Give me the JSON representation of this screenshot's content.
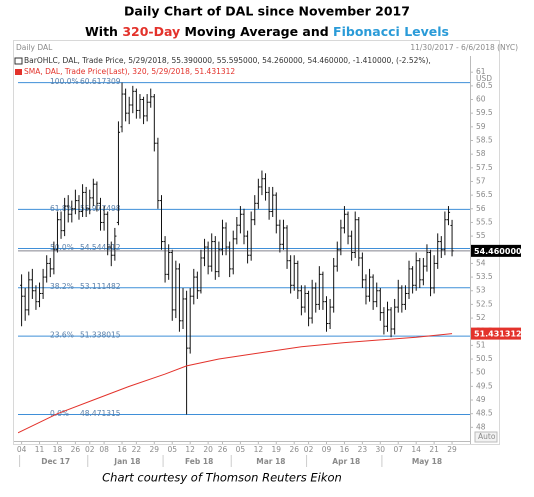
{
  "chart_data": {
    "type": "ohlc",
    "title": "Daily Chart of DAL since November 2017",
    "subtitle_parts": [
      {
        "text": "With "
      },
      {
        "text": "320-Day",
        "color": "#e3322b"
      },
      {
        "text": " Moving Average and "
      },
      {
        "text": "Fibonacci Levels",
        "color": "#2a9bd8"
      }
    ],
    "header_left": "Daily DAL",
    "header_right": "11/30/2017 - 6/6/2018 (NYC)",
    "legend": [
      "BarOHLC, DAL, Trade Price, 5/29/2018, 55.390000, 55.595000, 54.260000, 54.460000, -1.410000, (-2.52%),",
      "SMA, DAL, Trade Price(Last), 320, 5/29/2018, 51.431312"
    ],
    "color": "#111111",
    "x": [
      0,
      1,
      2,
      3,
      4,
      5,
      6,
      7,
      8,
      9,
      10,
      11,
      12,
      13,
      14,
      15,
      16,
      17,
      18,
      19,
      20,
      21,
      22,
      23,
      24,
      25,
      26,
      27,
      28,
      29,
      30,
      31,
      32,
      33,
      34,
      35,
      36,
      37,
      38,
      39,
      40,
      41,
      42,
      43,
      44,
      45,
      46,
      47,
      48,
      49,
      50,
      51,
      52,
      53,
      54,
      55,
      56,
      57,
      58,
      59,
      60,
      61,
      62,
      63,
      64,
      65,
      66,
      67,
      68,
      69,
      70,
      71,
      72,
      73,
      74,
      75,
      76,
      77,
      78,
      79,
      80,
      81,
      82,
      83,
      84,
      85,
      86,
      87,
      88,
      89,
      90,
      91,
      92,
      93,
      94,
      95,
      96,
      97,
      98,
      99,
      100,
      101,
      102,
      103,
      104,
      105,
      106,
      107,
      108,
      109,
      110,
      111,
      112,
      113,
      114,
      115,
      116,
      117,
      118,
      119,
      120
    ],
    "ohlc": [
      [
        53.2,
        53.6,
        51.7,
        52.8
      ],
      [
        52.8,
        53.1,
        51.9,
        52.3
      ],
      [
        52.3,
        53.7,
        52.1,
        53.4
      ],
      [
        53.4,
        53.8,
        52.7,
        53.0
      ],
      [
        53.0,
        53.2,
        52.3,
        52.6
      ],
      [
        52.6,
        53.3,
        52.4,
        52.9
      ],
      [
        52.9,
        53.8,
        52.7,
        53.5
      ],
      [
        53.5,
        54.3,
        53.3,
        54.0
      ],
      [
        54.0,
        54.2,
        53.5,
        53.8
      ],
      [
        53.8,
        54.8,
        53.6,
        54.5
      ],
      [
        54.5,
        55.9,
        54.4,
        55.6
      ],
      [
        55.6,
        55.9,
        54.9,
        55.2
      ],
      [
        55.2,
        56.4,
        55.0,
        56.1
      ],
      [
        56.1,
        56.5,
        55.5,
        55.8
      ],
      [
        55.8,
        56.3,
        55.5,
        56.0
      ],
      [
        56.0,
        56.7,
        55.8,
        56.3
      ],
      [
        56.3,
        56.5,
        55.6,
        55.9
      ],
      [
        55.9,
        56.9,
        55.7,
        56.6
      ],
      [
        56.6,
        56.8,
        55.7,
        56.0
      ],
      [
        56.0,
        56.7,
        55.8,
        56.4
      ],
      [
        56.4,
        57.1,
        56.1,
        56.9
      ],
      [
        56.9,
        57.0,
        55.9,
        56.2
      ],
      [
        56.2,
        56.4,
        55.2,
        55.5
      ],
      [
        55.5,
        56.1,
        55.2,
        55.8
      ],
      [
        55.8,
        55.9,
        54.3,
        54.6
      ],
      [
        54.6,
        54.8,
        53.9,
        54.3
      ],
      [
        54.3,
        55.3,
        54.1,
        55.0
      ],
      [
        55.5,
        59.2,
        55.4,
        58.8
      ],
      [
        59.0,
        60.62,
        58.8,
        60.2
      ],
      [
        60.2,
        60.4,
        59.2,
        59.5
      ],
      [
        59.5,
        60.1,
        59.1,
        59.8
      ],
      [
        59.8,
        60.5,
        59.5,
        60.3
      ],
      [
        60.3,
        60.4,
        59.3,
        59.6
      ],
      [
        59.6,
        60.2,
        59.3,
        60.0
      ],
      [
        60.0,
        60.1,
        59.1,
        59.4
      ],
      [
        59.4,
        60.2,
        59.2,
        59.9
      ],
      [
        59.9,
        60.4,
        59.7,
        60.1
      ],
      [
        60.1,
        60.2,
        58.1,
        58.4
      ],
      [
        58.4,
        58.6,
        56.0,
        56.3
      ],
      [
        56.3,
        56.5,
        54.5,
        54.8
      ],
      [
        54.8,
        55.0,
        53.3,
        53.6
      ],
      [
        53.6,
        54.7,
        53.4,
        54.4
      ],
      [
        54.4,
        54.5,
        51.9,
        52.3
      ],
      [
        52.3,
        54.1,
        52.0,
        53.8
      ],
      [
        53.8,
        54.0,
        51.5,
        51.9
      ],
      [
        51.9,
        53.1,
        51.6,
        52.7
      ],
      [
        52.7,
        53.0,
        48.47,
        50.9
      ],
      [
        50.9,
        53.1,
        50.7,
        52.8
      ],
      [
        52.8,
        53.8,
        52.5,
        53.5
      ],
      [
        53.5,
        53.7,
        52.7,
        53.0
      ],
      [
        53.0,
        54.5,
        52.9,
        54.2
      ],
      [
        54.2,
        54.9,
        53.9,
        54.6
      ],
      [
        54.6,
        54.8,
        53.6,
        53.9
      ],
      [
        53.9,
        55.1,
        53.7,
        54.8
      ],
      [
        54.8,
        55.0,
        53.4,
        53.7
      ],
      [
        53.7,
        54.8,
        53.5,
        54.5
      ],
      [
        54.5,
        55.6,
        54.3,
        55.3
      ],
      [
        55.3,
        55.5,
        54.3,
        54.6
      ],
      [
        54.6,
        54.8,
        53.5,
        53.8
      ],
      [
        53.8,
        55.2,
        53.6,
        54.9
      ],
      [
        54.9,
        55.7,
        54.7,
        55.4
      ],
      [
        55.4,
        56.1,
        55.1,
        55.8
      ],
      [
        55.8,
        56.0,
        54.7,
        55.0
      ],
      [
        55.0,
        55.2,
        54.0,
        54.3
      ],
      [
        54.3,
        55.9,
        54.1,
        55.6
      ],
      [
        55.6,
        56.5,
        55.4,
        56.2
      ],
      [
        56.2,
        57.1,
        56.0,
        56.8
      ],
      [
        56.8,
        57.4,
        56.5,
        57.1
      ],
      [
        57.1,
        57.3,
        56.3,
        56.6
      ],
      [
        56.6,
        56.8,
        55.6,
        55.9
      ],
      [
        55.9,
        56.8,
        55.7,
        56.5
      ],
      [
        56.5,
        56.6,
        55.1,
        55.4
      ],
      [
        55.4,
        55.6,
        54.4,
        54.7
      ],
      [
        54.7,
        55.6,
        54.5,
        55.3
      ],
      [
        55.3,
        55.4,
        53.8,
        54.1
      ],
      [
        54.1,
        54.3,
        52.9,
        53.2
      ],
      [
        53.2,
        54.3,
        53.0,
        54.0
      ],
      [
        54.0,
        54.1,
        52.7,
        53.0
      ],
      [
        53.0,
        53.2,
        52.1,
        52.4
      ],
      [
        52.4,
        53.2,
        52.2,
        52.9
      ],
      [
        52.9,
        53.0,
        51.7,
        52.0
      ],
      [
        52.0,
        53.4,
        51.8,
        53.1
      ],
      [
        53.1,
        53.3,
        52.2,
        52.5
      ],
      [
        52.5,
        53.9,
        52.3,
        53.6
      ],
      [
        53.6,
        53.7,
        52.3,
        52.6
      ],
      [
        52.6,
        52.8,
        51.5,
        51.8
      ],
      [
        51.8,
        52.7,
        51.6,
        52.4
      ],
      [
        52.4,
        54.2,
        52.2,
        53.9
      ],
      [
        53.9,
        54.8,
        53.7,
        54.5
      ],
      [
        54.5,
        55.6,
        54.3,
        55.3
      ],
      [
        55.3,
        56.1,
        55.1,
        55.8
      ],
      [
        55.8,
        55.9,
        54.7,
        55.0
      ],
      [
        55.0,
        55.2,
        54.1,
        54.4
      ],
      [
        54.4,
        55.9,
        54.2,
        55.6
      ],
      [
        55.6,
        55.7,
        53.9,
        54.2
      ],
      [
        54.2,
        54.4,
        53.1,
        53.4
      ],
      [
        53.4,
        53.6,
        52.5,
        52.8
      ],
      [
        52.8,
        53.8,
        52.6,
        53.5
      ],
      [
        53.5,
        53.6,
        52.3,
        52.6
      ],
      [
        52.6,
        53.3,
        52.4,
        53.0
      ],
      [
        53.0,
        53.1,
        51.9,
        52.2
      ],
      [
        52.2,
        52.4,
        51.4,
        51.7
      ],
      [
        51.7,
        52.6,
        51.5,
        52.3
      ],
      [
        52.3,
        52.4,
        51.3,
        51.6
      ],
      [
        51.6,
        52.7,
        51.4,
        52.4
      ],
      [
        52.4,
        53.4,
        52.2,
        53.1
      ],
      [
        53.1,
        53.2,
        52.2,
        52.5
      ],
      [
        52.5,
        53.2,
        52.3,
        52.9
      ],
      [
        52.9,
        54.1,
        52.7,
        53.8
      ],
      [
        53.8,
        53.9,
        52.9,
        53.2
      ],
      [
        53.2,
        54.4,
        53.0,
        54.1
      ],
      [
        54.1,
        54.2,
        53.1,
        53.4
      ],
      [
        53.4,
        54.2,
        53.2,
        53.9
      ],
      [
        53.9,
        54.7,
        53.7,
        54.4
      ],
      [
        54.4,
        54.5,
        52.8,
        53.1
      ],
      [
        53.1,
        54.3,
        52.9,
        54.0
      ],
      [
        54.0,
        55.1,
        53.8,
        54.8
      ],
      [
        54.8,
        55.0,
        54.2,
        54.5
      ],
      [
        54.5,
        55.9,
        54.3,
        55.6
      ],
      [
        55.6,
        56.1,
        55.4,
        55.87
      ],
      [
        55.39,
        55.595,
        54.26,
        54.46
      ]
    ],
    "sma": {
      "color": "#e3322b",
      "x": [
        -1,
        10,
        20,
        30,
        40,
        46,
        55,
        65,
        78,
        90,
        100,
        110,
        120
      ],
      "values": [
        47.8,
        48.5,
        49.0,
        49.5,
        49.95,
        50.25,
        50.5,
        50.7,
        50.95,
        51.1,
        51.2,
        51.3,
        51.431312
      ]
    },
    "fib_color": "#3f8fd8",
    "fib_levels": [
      {
        "pct": "100.0%",
        "value": 60.617309
      },
      {
        "pct": "61.8%",
        "value": 55.977498
      },
      {
        "pct": "50.0%",
        "value": 54.544312
      },
      {
        "pct": "38.2%",
        "value": 53.111482
      },
      {
        "pct": "23.6%",
        "value": 51.338015
      },
      {
        "pct": "0.0%",
        "value": 48.471315
      }
    ],
    "last_price": {
      "value": 54.46,
      "label": "54.460000",
      "color": "#000000"
    },
    "sma_last": {
      "value": 51.431312,
      "label": "51.431312",
      "color": "#e3322b"
    },
    "xlim": [
      -1,
      125
    ],
    "ylim": [
      47.5,
      61.3
    ],
    "xticks": [
      {
        "value": 0,
        "label": "04"
      },
      {
        "value": 5,
        "label": "11"
      },
      {
        "value": 10,
        "label": "18"
      },
      {
        "value": 15,
        "label": "26"
      },
      {
        "value": 19,
        "label": "02"
      },
      {
        "value": 23,
        "label": "08"
      },
      {
        "value": 28,
        "label": "16"
      },
      {
        "value": 32,
        "label": "22"
      },
      {
        "value": 37,
        "label": "29"
      },
      {
        "value": 42,
        "label": "05"
      },
      {
        "value": 47,
        "label": "12"
      },
      {
        "value": 52,
        "label": "20"
      },
      {
        "value": 56,
        "label": "26"
      },
      {
        "value": 61,
        "label": "05"
      },
      {
        "value": 66,
        "label": "12"
      },
      {
        "value": 71,
        "label": "19"
      },
      {
        "value": 76,
        "label": "26"
      },
      {
        "value": 80,
        "label": "02"
      },
      {
        "value": 85,
        "label": "09"
      },
      {
        "value": 90,
        "label": "16"
      },
      {
        "value": 95,
        "label": "23"
      },
      {
        "value": 100,
        "label": "30"
      },
      {
        "value": 105,
        "label": "07"
      },
      {
        "value": 110,
        "label": "14"
      },
      {
        "value": 115,
        "label": "21"
      },
      {
        "value": 120,
        "label": "29"
      }
    ],
    "months": [
      {
        "value": 0,
        "label": "Dec 17"
      },
      {
        "value": 19,
        "label": "Jan 18"
      },
      {
        "value": 40,
        "label": "Feb 18"
      },
      {
        "value": 59,
        "label": "Mar 18"
      },
      {
        "value": 80,
        "label": "Apr 18"
      },
      {
        "value": 101,
        "label": "May 18"
      }
    ],
    "yticks": [
      48,
      48.5,
      49,
      49.5,
      50,
      50.5,
      51,
      51.5,
      52,
      52.5,
      53,
      53.5,
      54,
      54.5,
      55,
      55.5,
      56,
      56.5,
      57,
      57.5,
      58,
      58.5,
      59,
      59.5,
      60,
      60.5,
      61
    ],
    "y_unit": "USD",
    "auto_label": "Auto",
    "footer": "Chart courtesy of Thomson Reuters Eikon"
  }
}
